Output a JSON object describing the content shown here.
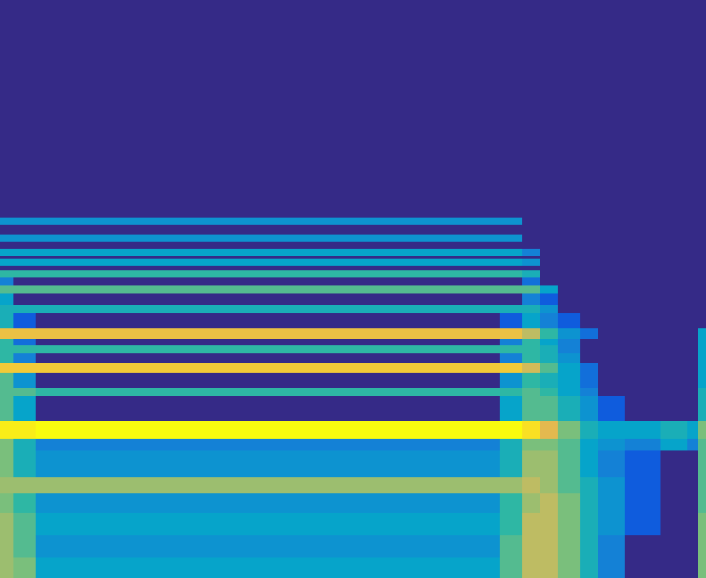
{
  "chart_data": {
    "type": "heatmap",
    "tick_labels": false,
    "grid": false,
    "xlim": [
      0,
      791
    ],
    "ylim": [
      0,
      648
    ],
    "zlim": [
      0,
      1
    ],
    "x_bins": [
      0,
      15,
      40,
      560,
      585,
      605,
      625,
      650,
      670,
      700,
      740,
      770,
      782,
      791
    ],
    "y_bins": [
      0,
      23,
      48,
      73,
      95,
      113,
      143,
      156,
      176,
      204,
      213,
      230,
      241,
      252,
      261,
      268,
      280,
      297,
      306,
      319,
      328,
      337,
      345,
      350,
      358,
      361,
      369,
      377,
      385,
      396,
      404,
      648
    ],
    "cells": [
      [
        0.55,
        0.5,
        0.3,
        0.45,
        0.6,
        0.6,
        0.5,
        0.35,
        0.2,
        0,
        0,
        0,
        0.5
      ],
      [
        0.55,
        0.45,
        0.25,
        0.45,
        0.6,
        0.6,
        0.5,
        0.35,
        0.2,
        0,
        0,
        0,
        0.5
      ],
      [
        0.55,
        0.45,
        0.3,
        0.4,
        0.6,
        0.6,
        0.5,
        0.35,
        0.25,
        0.1,
        0,
        0,
        0.5
      ],
      [
        0.5,
        0.4,
        0.25,
        0.4,
        0.55,
        0.6,
        0.5,
        0.35,
        0.25,
        0.1,
        0,
        0,
        0.45
      ],
      [
        0.55,
        0.55,
        0.55,
        0.55,
        0.6,
        0.55,
        0.45,
        0.35,
        0.25,
        0.1,
        0,
        0,
        0.45
      ],
      [
        0.5,
        0.35,
        0.25,
        0.35,
        0.55,
        0.55,
        0.45,
        0.3,
        0.2,
        0.1,
        0,
        0,
        0.45
      ],
      [
        0.5,
        0.35,
        0.2,
        0.35,
        0.5,
        0.5,
        0.45,
        0.3,
        0.25,
        0.2,
        0.3,
        0.2,
        0.45
      ],
      [
        0.95,
        0.95,
        1.0,
        1.0,
        0.9,
        0.7,
        0.5,
        0.35,
        0.3,
        0.3,
        0.35,
        0.3,
        0.5
      ],
      [
        0.45,
        0.3,
        0,
        0.3,
        0.45,
        0.45,
        0.35,
        0.25,
        0.1,
        0,
        0,
        0,
        0.35
      ],
      [
        0.45,
        0.45,
        0.4,
        0.4,
        0.45,
        0.4,
        0.3,
        0.2,
        0,
        0,
        0,
        0,
        0.35
      ],
      [
        0.45,
        0.25,
        0,
        0.25,
        0.4,
        0.35,
        0.3,
        0.15,
        0,
        0,
        0,
        0,
        0.3
      ],
      [
        0.8,
        0.8,
        0.8,
        0.8,
        0.65,
        0.45,
        0.3,
        0.15,
        0,
        0,
        0,
        0,
        0.3
      ],
      [
        0.4,
        0.2,
        0,
        0.2,
        0.4,
        0.35,
        0.25,
        0,
        0,
        0,
        0,
        0,
        0.3
      ],
      [
        0.4,
        0.4,
        0.4,
        0.4,
        0.4,
        0.35,
        0.2,
        0,
        0,
        0,
        0,
        0,
        0.3
      ],
      [
        0.4,
        0.15,
        0,
        0.2,
        0.4,
        0.3,
        0.2,
        0,
        0,
        0,
        0,
        0,
        0.3
      ],
      [
        0.75,
        0.75,
        0.75,
        0.75,
        0.6,
        0.4,
        0.25,
        0.15,
        0,
        0,
        0,
        0,
        0.3
      ],
      [
        0.35,
        0.1,
        0,
        0.1,
        0.3,
        0.2,
        0.1,
        0,
        0,
        0,
        0,
        0,
        0
      ],
      [
        0.35,
        0.35,
        0.35,
        0.35,
        0.35,
        0.25,
        0,
        0,
        0,
        0,
        0,
        0,
        0
      ],
      [
        0.3,
        0,
        0,
        0,
        0.2,
        0.1,
        0,
        0,
        0,
        0,
        0,
        0,
        0
      ],
      [
        0.45,
        0.45,
        0.45,
        0.45,
        0.45,
        0.3,
        0,
        0,
        0,
        0,
        0,
        0,
        0
      ],
      [
        0.2,
        0,
        0,
        0,
        0.15,
        0,
        0,
        0,
        0,
        0,
        0,
        0,
        0
      ],
      [
        0.4,
        0.4,
        0.4,
        0.4,
        0.35,
        0,
        0,
        0,
        0,
        0,
        0,
        0,
        0
      ],
      [
        0,
        0,
        0,
        0,
        0,
        0,
        0,
        0,
        0,
        0,
        0,
        0,
        0
      ],
      [
        0.3,
        0.3,
        0.3,
        0.3,
        0.25,
        0,
        0,
        0,
        0,
        0,
        0,
        0,
        0
      ],
      [
        0,
        0,
        0,
        0,
        0,
        0,
        0,
        0,
        0,
        0,
        0,
        0,
        0
      ],
      [
        0.3,
        0.3,
        0.3,
        0.3,
        0.2,
        0,
        0,
        0,
        0,
        0,
        0,
        0,
        0
      ],
      [
        0,
        0,
        0,
        0,
        0,
        0,
        0,
        0,
        0,
        0,
        0,
        0,
        0
      ],
      [
        0.25,
        0.25,
        0.25,
        0.25,
        0,
        0,
        0,
        0,
        0,
        0,
        0,
        0,
        0
      ],
      [
        0,
        0,
        0,
        0,
        0,
        0,
        0,
        0,
        0,
        0,
        0,
        0,
        0
      ],
      [
        0.25,
        0.25,
        0.25,
        0.25,
        0,
        0,
        0,
        0,
        0,
        0,
        0,
        0,
        0
      ],
      [
        0,
        0,
        0,
        0,
        0,
        0,
        0,
        0,
        0,
        0,
        0,
        0,
        0
      ]
    ]
  }
}
